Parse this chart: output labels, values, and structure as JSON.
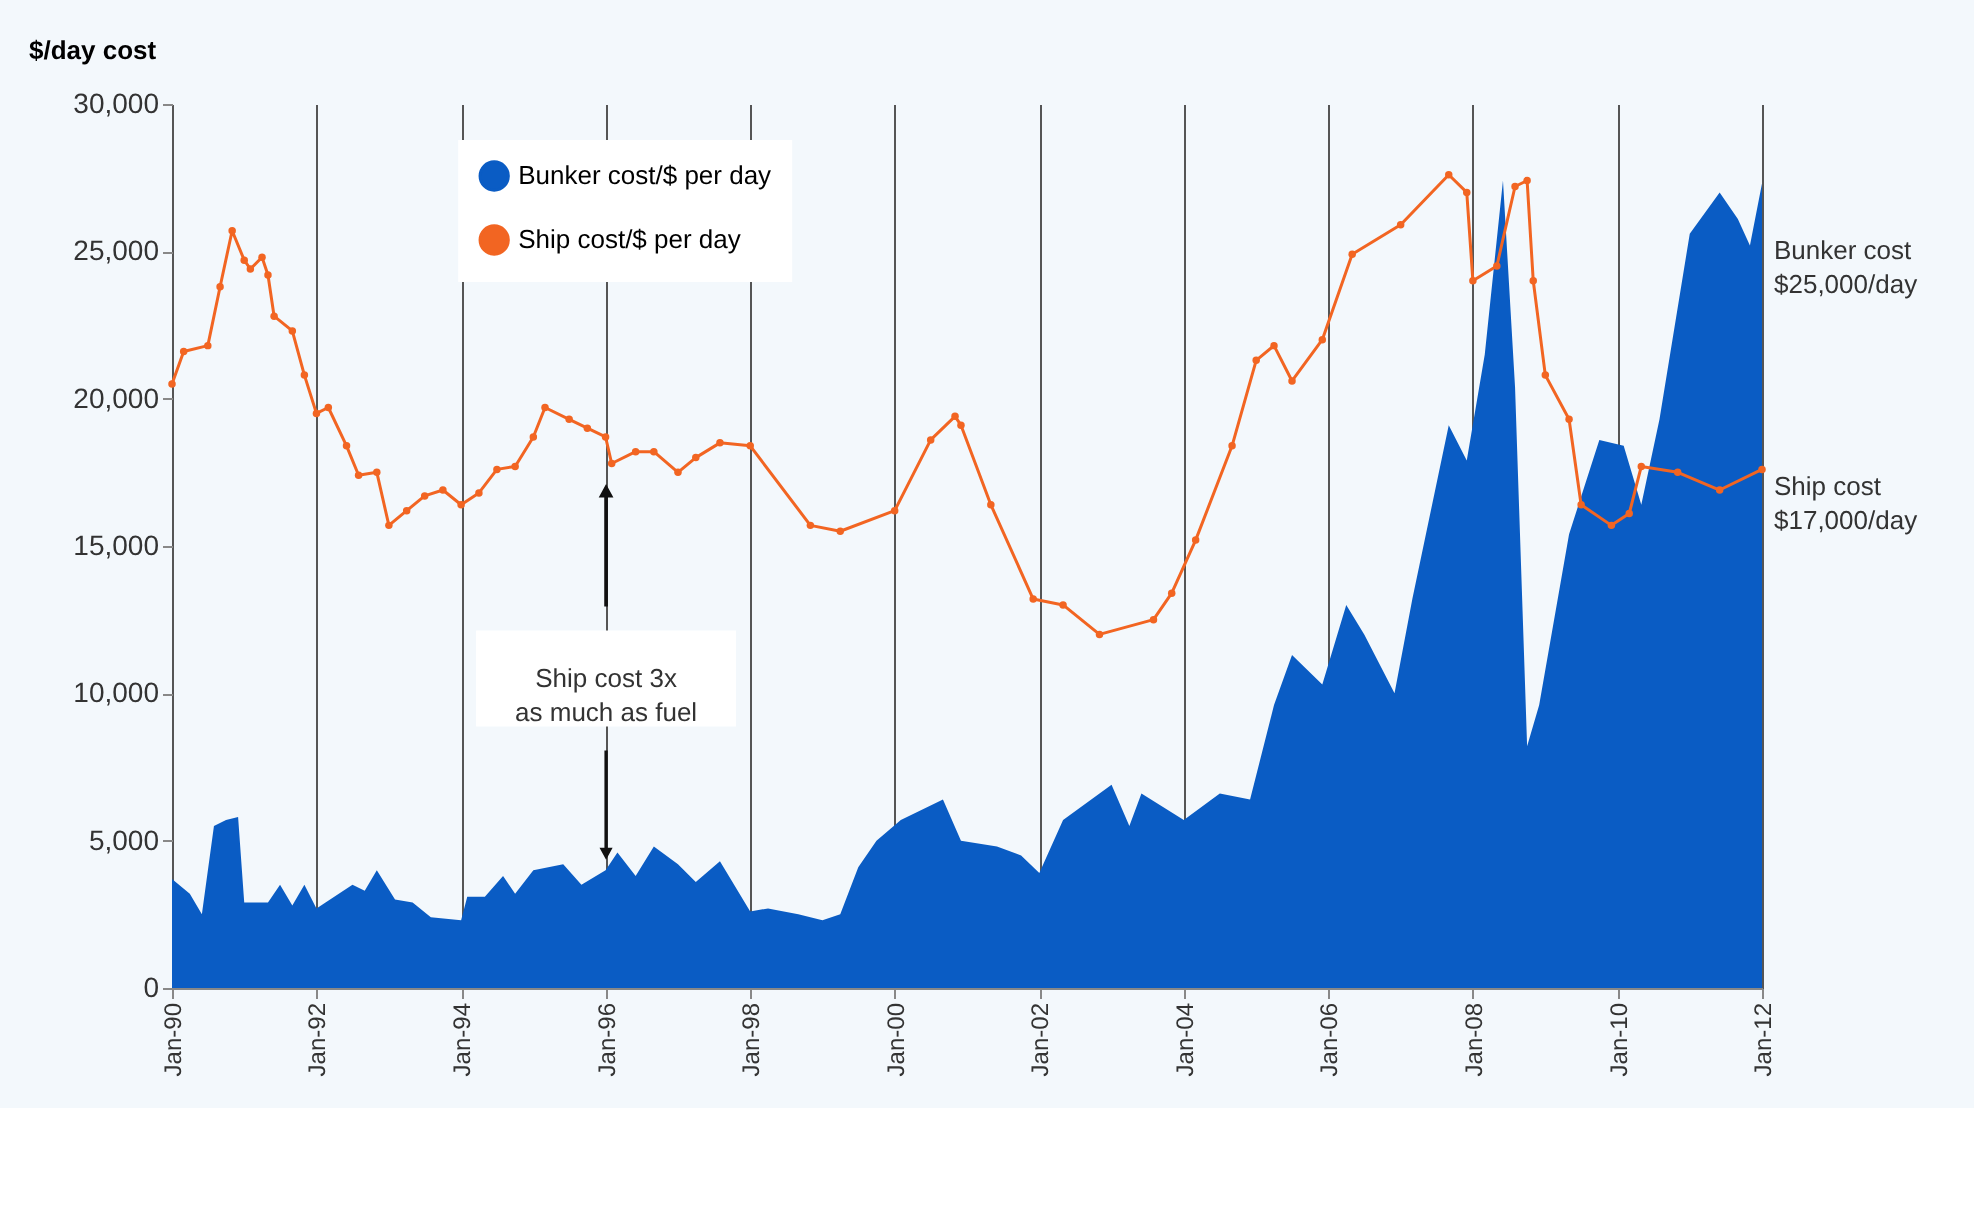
{
  "chart_data": {
    "type": "area",
    "ylabel": "$/day cost",
    "xlim": [
      "1990-01",
      "2012-01"
    ],
    "ylim": [
      0,
      30000
    ],
    "xticks": [
      {
        "value": "1990-01",
        "label": "Jan-90"
      },
      {
        "value": "1992-01",
        "label": "Jan-92"
      },
      {
        "value": "1994-01",
        "label": "Jan-94"
      },
      {
        "value": "1996-01",
        "label": "Jan-96"
      },
      {
        "value": "1998-01",
        "label": "Jan-98"
      },
      {
        "value": "2000-01",
        "label": "Jan-00"
      },
      {
        "value": "2002-01",
        "label": "Jan-02"
      },
      {
        "value": "2004-01",
        "label": "Jan-04"
      },
      {
        "value": "2006-01",
        "label": "Jan-06"
      },
      {
        "value": "2008-01",
        "label": "Jan-08"
      },
      {
        "value": "2010-01",
        "label": "Jan-10"
      },
      {
        "value": "2012-01",
        "label": "Jan-12"
      }
    ],
    "yticks": [
      0,
      {
        "value": 5000,
        "label": "5,000"
      },
      {
        "value": 10000,
        "label": "10,000"
      },
      {
        "value": 15000,
        "label": "15,000"
      },
      {
        "value": 20000,
        "label": "20,000"
      },
      {
        "value": 25000,
        "label": "25,000"
      },
      {
        "value": 30000,
        "label": "30,000"
      }
    ],
    "grid": "x",
    "legend": "top",
    "series": [
      {
        "name": "Bunker cost/$ per day",
        "color": "#0a5cc4",
        "x": [
          "1990-01",
          "1990-04",
          "1990-06",
          "1990-08",
          "1990-10",
          "1990-12",
          "1991-01",
          "1991-05",
          "1991-07",
          "1991-09",
          "1991-11",
          "1992-01",
          "1992-07",
          "1992-09",
          "1992-11",
          "1993-02",
          "1993-05",
          "1993-08",
          "1994-01",
          "1994-02",
          "1994-05",
          "1994-08",
          "1994-10",
          "1995-01",
          "1995-06",
          "1995-09",
          "1996-01",
          "1996-03",
          "1996-06",
          "1996-09",
          "1997-01",
          "1997-04",
          "1997-08",
          "1998-01",
          "1998-04",
          "1998-09",
          "1999-01",
          "1999-04",
          "1999-07",
          "1999-10",
          "2000-02",
          "2000-09",
          "2000-12",
          "2001-06",
          "2001-10",
          "2002-01",
          "2002-05",
          "2003-01",
          "2003-04",
          "2003-06",
          "2004-01",
          "2004-07",
          "2004-12",
          "2005-04",
          "2005-07",
          "2005-12",
          "2006-04",
          "2006-07",
          "2006-12",
          "2007-03",
          "2007-09",
          "2007-12",
          "2008-03",
          "2008-06",
          "2008-08",
          "2008-10",
          "2008-12",
          "2009-05",
          "2009-10",
          "2010-02",
          "2010-05",
          "2010-08",
          "2011-01",
          "2011-06",
          "2011-09",
          "2011-11",
          "2012-01"
        ],
        "values": [
          3700,
          3200,
          2500,
          5500,
          5700,
          5800,
          2900,
          2900,
          3500,
          2800,
          3500,
          2700,
          3500,
          3300,
          4000,
          3000,
          2900,
          2400,
          2300,
          3100,
          3100,
          3800,
          3200,
          4000,
          4200,
          3500,
          4000,
          4600,
          3800,
          4800,
          4200,
          3600,
          4300,
          2600,
          2700,
          2500,
          2300,
          2500,
          4100,
          5000,
          5700,
          6400,
          5000,
          4800,
          4500,
          3900,
          5700,
          6900,
          5500,
          6600,
          5700,
          6600,
          6400,
          9600,
          11300,
          10300,
          13000,
          12000,
          10000,
          13200,
          19100,
          17900,
          21500,
          27400,
          20400,
          8200,
          9600,
          15400,
          18600,
          18400,
          16400,
          19300,
          25600,
          27000,
          26100,
          25200,
          27300
        ]
      },
      {
        "name": "Ship cost/$ per day",
        "type": "line",
        "marker": "circle",
        "color": "#f26522",
        "x": [
          "1990-01",
          "1990-03",
          "1990-07",
          "1990-09",
          "1990-11",
          "1991-01",
          "1991-02",
          "1991-04",
          "1991-05",
          "1991-06",
          "1991-09",
          "1991-11",
          "1992-01",
          "1992-03",
          "1992-06",
          "1992-08",
          "1992-11",
          "1993-01",
          "1993-04",
          "1993-07",
          "1993-10",
          "1994-01",
          "1994-04",
          "1994-07",
          "1994-10",
          "1995-01",
          "1995-03",
          "1995-07",
          "1995-10",
          "1996-01",
          "1996-02",
          "1996-06",
          "1996-09",
          "1997-01",
          "1997-04",
          "1997-08",
          "1998-01",
          "1998-11",
          "1999-04",
          "2000-01",
          "2000-07",
          "2000-11",
          "2000-12",
          "2001-05",
          "2001-12",
          "2002-05",
          "2002-11",
          "2003-08",
          "2003-11",
          "2004-03",
          "2004-09",
          "2005-01",
          "2005-04",
          "2005-07",
          "2005-12",
          "2006-05",
          "2007-01",
          "2007-09",
          "2007-12",
          "2008-01",
          "2008-05",
          "2008-08",
          "2008-10",
          "2008-11",
          "2009-01",
          "2009-05",
          "2009-07",
          "2009-12",
          "2010-03",
          "2010-05",
          "2010-11",
          "2011-06",
          "2012-01"
        ],
        "values": [
          20500,
          21600,
          21800,
          23800,
          25700,
          24700,
          24400,
          24800,
          24200,
          22800,
          22300,
          20800,
          19500,
          19700,
          18400,
          17400,
          17500,
          15700,
          16200,
          16700,
          16900,
          16400,
          16800,
          17600,
          17700,
          18700,
          19700,
          19300,
          19000,
          18700,
          17800,
          18200,
          18200,
          17500,
          18000,
          18500,
          18400,
          15700,
          15500,
          16200,
          18600,
          19400,
          19100,
          16400,
          13200,
          13000,
          12000,
          12500,
          13400,
          15200,
          18400,
          21300,
          21800,
          20600,
          22000,
          24900,
          25900,
          27600,
          27000,
          24000,
          24500,
          27200,
          27400,
          24000,
          20800,
          19300,
          16400,
          15700,
          16100,
          17700,
          17500,
          16900,
          17600
        ]
      }
    ],
    "annotations": [
      "Ship cost 3x\nas much as fuel",
      {
        "text": "Bunker cost\n$25,000/day",
        "x": "2012-01",
        "y": 25000
      },
      {
        "text": "Ship cost\n$17,000/day",
        "x": "2012-01",
        "y": 17000
      }
    ]
  }
}
